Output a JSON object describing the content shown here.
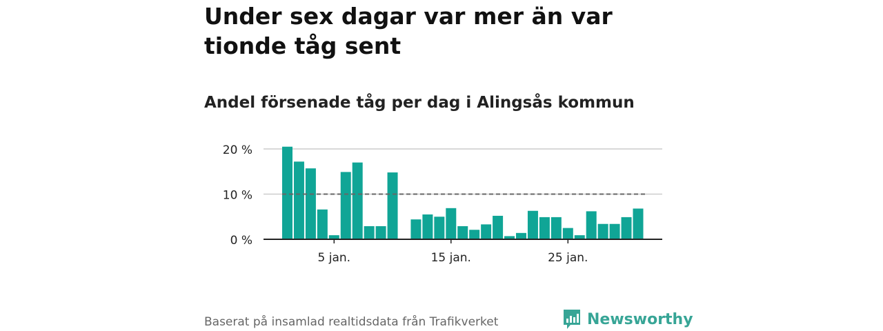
{
  "title": "Under sex dagar var mer än var tionde tåg sent",
  "subtitle": "Andel försenade tåg per dag i Alingsås kommun",
  "footer": "Baserat på insamlad realtidsdata från Trafikverket",
  "brand": {
    "name": "Newsworthy",
    "icon": "newsworthy-logo-icon",
    "color": "#37a596"
  },
  "colors": {
    "bar": "#10a596",
    "reference_line": "#666666",
    "grid": "#cccccc",
    "axis": "#222222"
  },
  "chart_data": {
    "type": "bar",
    "x": [
      1,
      2,
      3,
      4,
      5,
      6,
      7,
      8,
      9,
      10,
      11,
      12,
      13,
      14,
      15,
      16,
      17,
      18,
      19,
      20,
      21,
      22,
      23,
      24,
      25,
      26,
      27,
      28,
      29,
      30,
      31
    ],
    "values": [
      20.5,
      17.2,
      15.7,
      6.6,
      0.9,
      14.9,
      17.0,
      2.9,
      2.9,
      14.8,
      null,
      4.4,
      5.5,
      5.0,
      6.9,
      2.9,
      2.1,
      3.3,
      5.2,
      0.7,
      1.4,
      6.3,
      4.9,
      4.9,
      2.5,
      0.9,
      6.2,
      3.4,
      3.4,
      4.9,
      6.8
    ],
    "reference_line": 10,
    "ylim": [
      0,
      20
    ],
    "yticks": [
      0,
      10,
      20
    ],
    "ytick_labels": [
      "0 %",
      "10 %",
      "20 %"
    ],
    "xticks": [
      5,
      15,
      25
    ],
    "xtick_labels": [
      "5 jan.",
      "15 jan.",
      "25 jan."
    ],
    "xlabel": "",
    "ylabel": "",
    "grid": true,
    "legend": "none"
  }
}
